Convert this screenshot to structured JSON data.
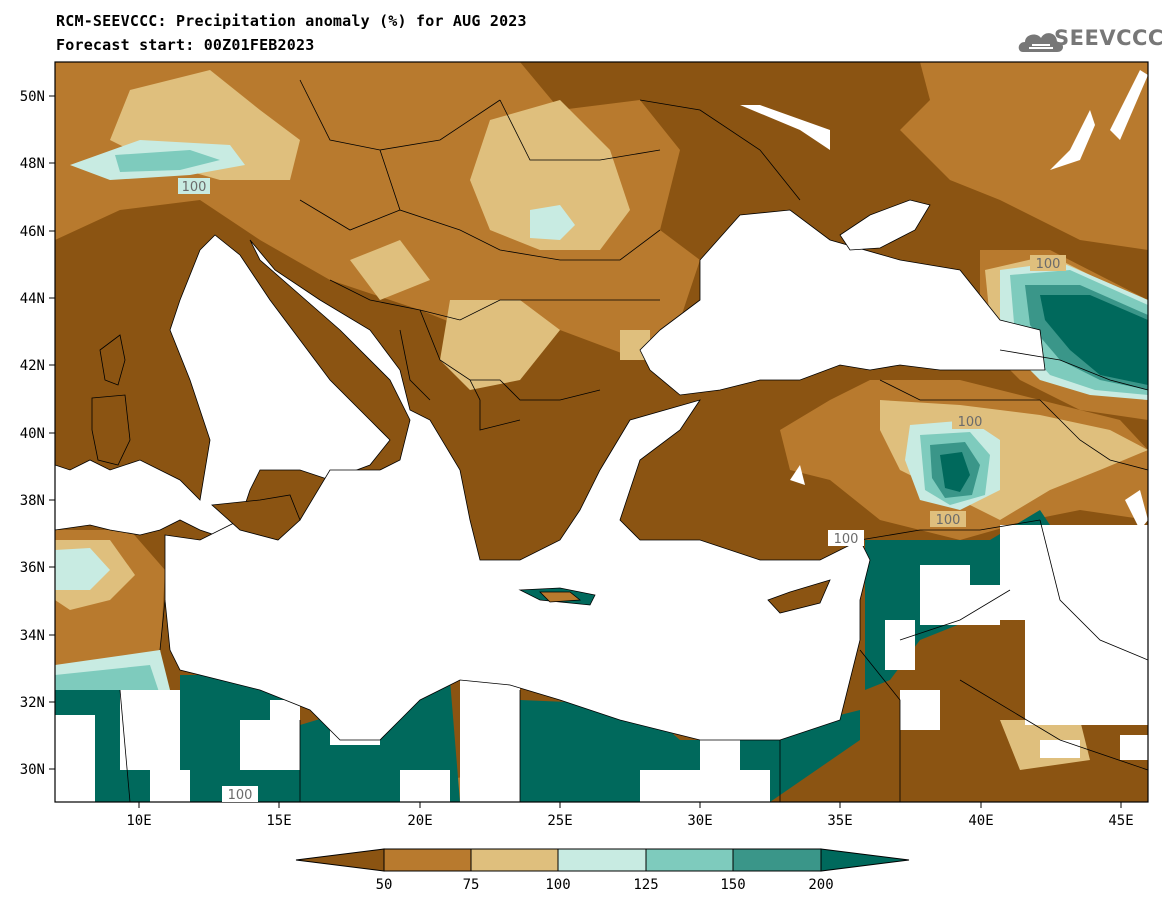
{
  "header": {
    "title_line1": "RCM-SEEVCCC: Precipitation anomaly (%) for AUG 2023",
    "title_line2": "Forecast start: 00Z01FEB2023",
    "logo_text": "SEEVCCC",
    "logo_icon": "cloud-icon"
  },
  "axes": {
    "lat_labels": [
      "50N",
      "48N",
      "46N",
      "44N",
      "42N",
      "40N",
      "38N",
      "36N",
      "34N",
      "32N",
      "30N"
    ],
    "lon_labels": [
      "10E",
      "15E",
      "20E",
      "25E",
      "30E",
      "35E",
      "40E",
      "45E"
    ]
  },
  "contour_labels": [
    "100",
    "100",
    "100",
    "100",
    "100",
    "100"
  ],
  "colorbar": {
    "colors": [
      "#8b5412",
      "#b87a2e",
      "#dfbf7d",
      "#c8ebe2",
      "#7ecbbd",
      "#3a9689",
      "#00695c"
    ],
    "labels": [
      "50",
      "75",
      "100",
      "125",
      "150",
      "200"
    ]
  },
  "map_colors": {
    "land_base": "#8b5412",
    "sea": "#ffffff",
    "border": "#000000"
  }
}
